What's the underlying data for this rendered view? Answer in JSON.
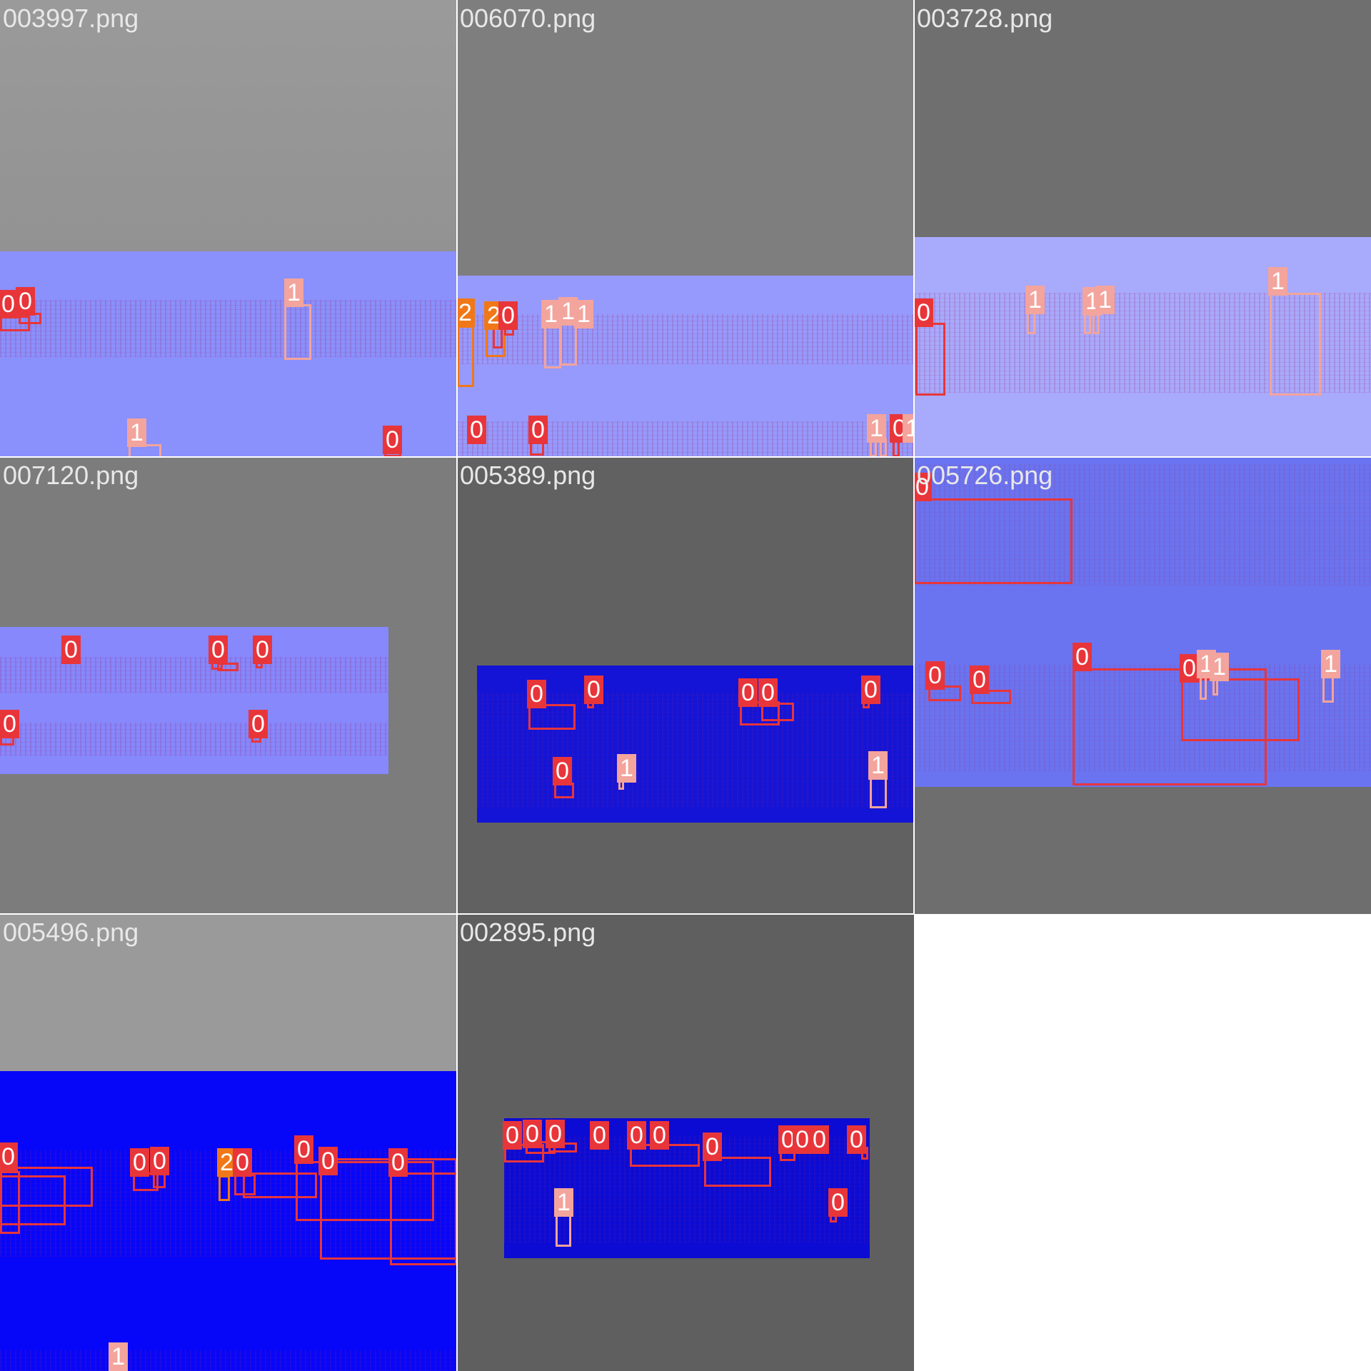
{
  "tiles": [
    {
      "filename": "003997.png"
    },
    {
      "filename": "006070.png"
    },
    {
      "filename": "003728.png"
    },
    {
      "filename": "007120.png"
    },
    {
      "filename": "005389.png"
    },
    {
      "filename": "005726.png"
    },
    {
      "filename": "005496.png"
    },
    {
      "filename": "002895.png"
    }
  ],
  "labels": {
    "zero": "0",
    "one": "1",
    "two": "2"
  },
  "colors": {
    "class0": "#e8353a",
    "class1": "#f3a49c",
    "class2": "#f07818"
  }
}
